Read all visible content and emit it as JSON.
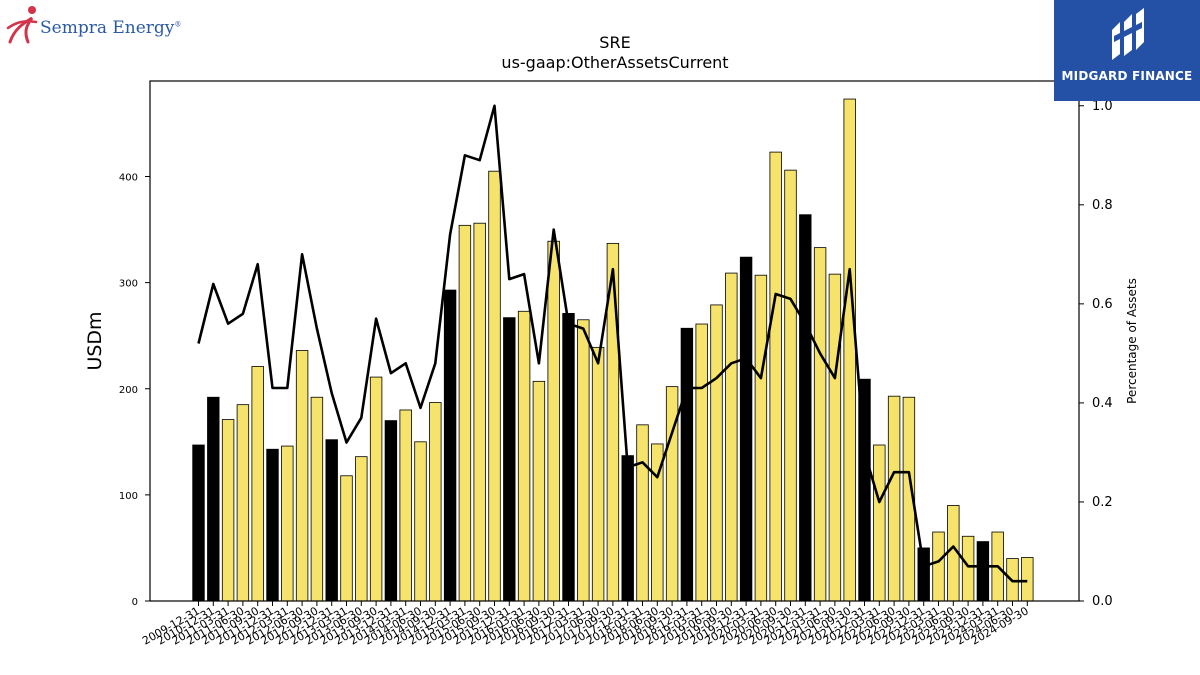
{
  "logos": {
    "left": {
      "name": "Sempra Energy",
      "mark": "®"
    },
    "right": {
      "name": "MIDGARD FINANCE"
    }
  },
  "chart_data": {
    "type": "bar",
    "title": "SRE",
    "subtitle": "us-gaap:OtherAssetsCurrent",
    "ylabel": "USDm",
    "y2label": "Percentage of Assets",
    "ylim": [
      0,
      490
    ],
    "y2lim": [
      0,
      1.0
    ],
    "yticks": [
      0,
      100,
      200,
      300,
      400
    ],
    "y2ticks": [
      "0.0",
      "0.2",
      "0.4",
      "0.6",
      "0.8",
      "1.0"
    ],
    "grid": false,
    "colors": {
      "annual_bar": "#000000",
      "quarter_bar": "#f5e36b",
      "line": "#000000"
    },
    "categories": [
      "2009-12-31",
      "2010-12-31",
      "2011-03-31",
      "2011-06-30",
      "2011-09-30",
      "2011-12-31",
      "2012-03-31",
      "2012-06-30",
      "2012-09-30",
      "2012-12-31",
      "2013-03-31",
      "2013-06-30",
      "2013-09-30",
      "2013-12-31",
      "2014-03-31",
      "2014-06-30",
      "2014-09-30",
      "2014-12-31",
      "2015-03-31",
      "2015-06-30",
      "2015-09-30",
      "2015-12-31",
      "2016-03-31",
      "2016-06-30",
      "2016-09-30",
      "2016-12-31",
      "2017-03-31",
      "2017-06-30",
      "2017-09-30",
      "2017-12-31",
      "2018-03-31",
      "2018-06-30",
      "2018-09-30",
      "2018-12-31",
      "2019-03-31",
      "2019-06-30",
      "2019-09-30",
      "2019-12-31",
      "2020-03-31",
      "2020-06-30",
      "2020-09-30",
      "2020-12-31",
      "2021-03-31",
      "2021-06-30",
      "2021-09-30",
      "2021-12-31",
      "2022-03-31",
      "2022-06-30",
      "2022-09-30",
      "2022-12-31",
      "2023-03-31",
      "2023-06-30",
      "2023-09-30",
      "2023-12-31",
      "2024-03-31",
      "2024-06-30",
      "2024-09-30"
    ],
    "annual": [
      true,
      true,
      false,
      false,
      false,
      true,
      false,
      false,
      false,
      true,
      false,
      false,
      false,
      true,
      false,
      false,
      false,
      true,
      false,
      false,
      false,
      true,
      false,
      false,
      false,
      true,
      false,
      false,
      false,
      true,
      false,
      false,
      false,
      true,
      false,
      false,
      false,
      true,
      false,
      false,
      false,
      true,
      false,
      false,
      false,
      true,
      false,
      false,
      false,
      true,
      false,
      false,
      false,
      true,
      false,
      false,
      false
    ],
    "series": [
      {
        "name": "USDm",
        "values": [
          147,
          192,
          171,
          185,
          221,
          143,
          146,
          236,
          192,
          152,
          118,
          136,
          211,
          170,
          180,
          150,
          187,
          293,
          354,
          356,
          405,
          267,
          273,
          207,
          339,
          271,
          265,
          239,
          337,
          137,
          166,
          148,
          202,
          257,
          261,
          279,
          309,
          324,
          307,
          423,
          406,
          364,
          333,
          308,
          473,
          209,
          147,
          193,
          192,
          50,
          65,
          90,
          61,
          56,
          65,
          40,
          41
        ]
      },
      {
        "name": "Percentage of Assets",
        "axis": "right",
        "values": [
          0.52,
          0.64,
          0.56,
          0.58,
          0.68,
          0.43,
          0.43,
          0.7,
          0.55,
          0.42,
          0.32,
          0.37,
          0.57,
          0.46,
          0.48,
          0.39,
          0.48,
          0.74,
          0.9,
          0.89,
          1.0,
          0.65,
          0.66,
          0.48,
          0.75,
          0.56,
          0.55,
          0.48,
          0.67,
          0.27,
          0.28,
          0.25,
          0.34,
          0.43,
          0.43,
          0.45,
          0.48,
          0.49,
          0.45,
          0.62,
          0.61,
          0.56,
          0.5,
          0.45,
          0.67,
          0.3,
          0.2,
          0.26,
          0.26,
          0.07,
          0.08,
          0.11,
          0.07,
          0.07,
          0.07,
          0.04,
          0.04
        ]
      }
    ]
  }
}
